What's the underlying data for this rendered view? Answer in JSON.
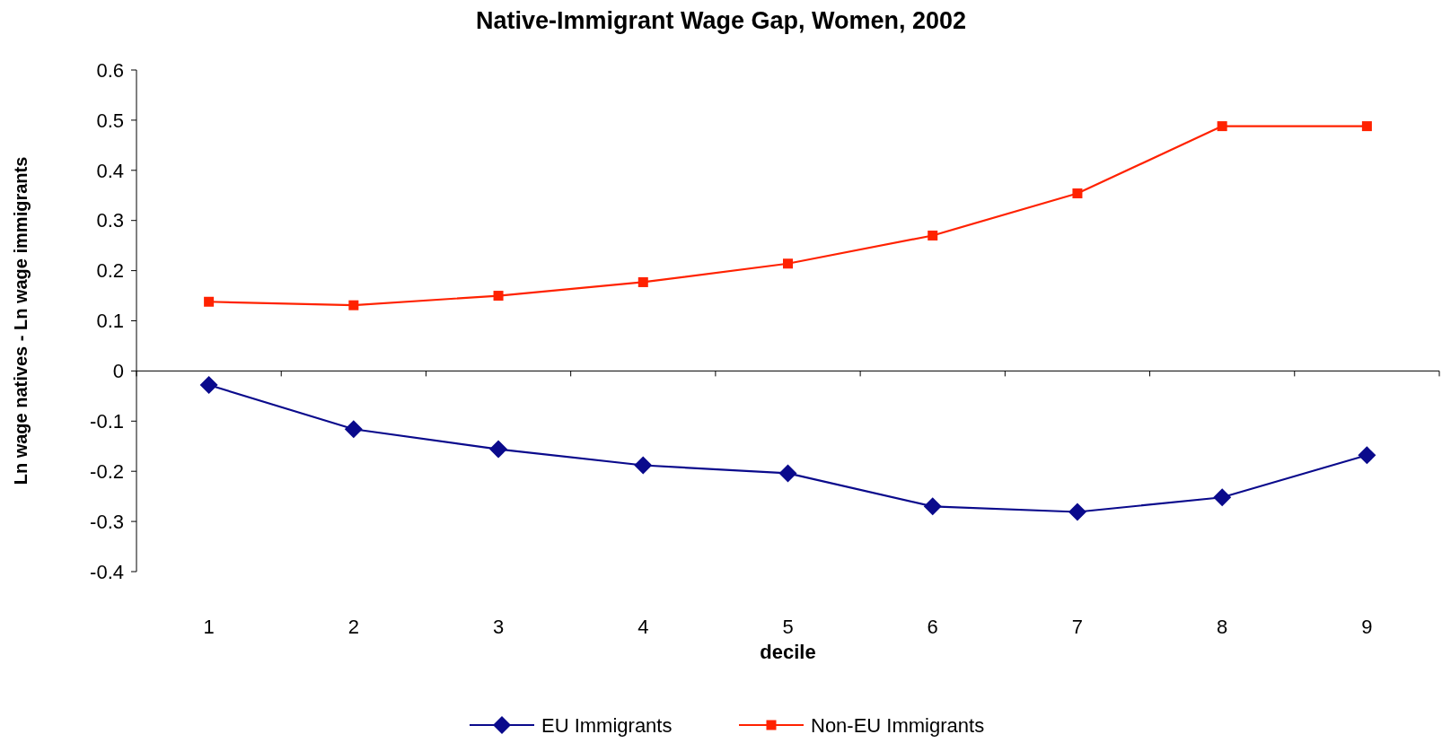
{
  "chart_data": {
    "type": "line",
    "title": "Native-Immigrant Wage Gap, Women, 2002",
    "xlabel": "decile",
    "ylabel": "Ln wage natives - Ln wage immigrants",
    "categories": [
      "1",
      "2",
      "3",
      "4",
      "5",
      "6",
      "7",
      "8",
      "9"
    ],
    "series": [
      {
        "name": "EU Immigrants",
        "color": "#0a0a8c",
        "marker": "diamond",
        "values": [
          -0.028,
          -0.116,
          -0.156,
          -0.188,
          -0.204,
          -0.27,
          -0.281,
          -0.252,
          -0.168
        ]
      },
      {
        "name": "Non-EU Immigrants",
        "color": "#ff2200",
        "marker": "square",
        "values": [
          0.138,
          0.131,
          0.15,
          0.177,
          0.214,
          0.27,
          0.354,
          0.488,
          0.488
        ]
      }
    ],
    "ylim": [
      -0.4,
      0.6
    ],
    "yticks": [
      -0.4,
      -0.3,
      -0.2,
      -0.1,
      0,
      0.1,
      0.2,
      0.3,
      0.4,
      0.5,
      0.6
    ],
    "legend": "bottom",
    "line_style": "solid"
  }
}
